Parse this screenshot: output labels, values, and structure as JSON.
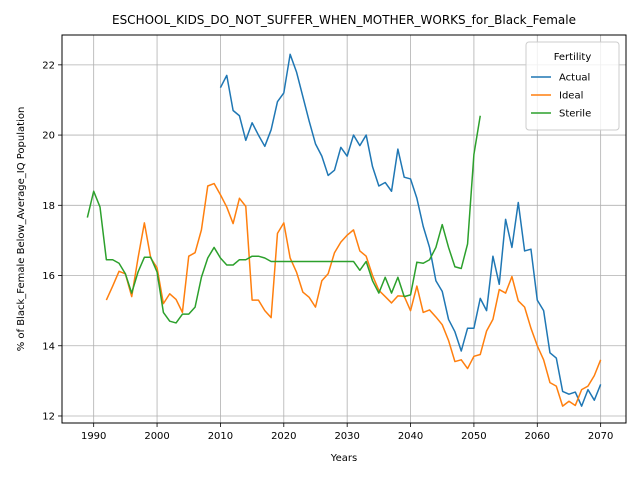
{
  "chart_data": {
    "type": "line",
    "title": "ESCHOOL_KIDS_DO_NOT_SUFFER_WHEN_MOTHER_WORKS_for_Black_Female",
    "xlabel": "Years",
    "ylabel": "% of Black_Female Below_Average_IQ Population",
    "xlim": [
      1985,
      2074
    ],
    "ylim": [
      11.8,
      22.85
    ],
    "xticks": [
      1990,
      2000,
      2010,
      2020,
      2030,
      2040,
      2050,
      2060,
      2070
    ],
    "yticks": [
      12,
      14,
      16,
      18,
      20,
      22
    ],
    "grid": true,
    "legend": {
      "title": "Fertility",
      "placement": "top-right"
    },
    "series": [
      {
        "name": "Actual",
        "color": "#1f77b4",
        "x": [
          2010,
          2011,
          2012,
          2013,
          2014,
          2015,
          2016,
          2017,
          2018,
          2019,
          2020,
          2021,
          2022,
          2023,
          2024,
          2025,
          2026,
          2027,
          2028,
          2029,
          2030,
          2031,
          2032,
          2033,
          2034,
          2035,
          2036,
          2037,
          2038,
          2039,
          2040,
          2041,
          2042,
          2043,
          2044,
          2045,
          2046,
          2047,
          2048,
          2049,
          2050,
          2051,
          2052,
          2053,
          2054,
          2055,
          2056,
          2057,
          2058,
          2059,
          2060,
          2061,
          2062,
          2063,
          2064,
          2065,
          2066,
          2067,
          2068,
          2069,
          2070
        ],
        "values": [
          21.35,
          21.7,
          20.7,
          20.55,
          19.85,
          20.35,
          20.0,
          19.68,
          20.15,
          20.95,
          21.2,
          22.3,
          21.8,
          21.1,
          20.4,
          19.75,
          19.4,
          18.85,
          19.0,
          19.65,
          19.4,
          20.0,
          19.7,
          20.0,
          19.1,
          18.55,
          18.65,
          18.4,
          19.6,
          18.8,
          18.75,
          18.2,
          17.4,
          16.8,
          15.85,
          15.55,
          14.75,
          14.4,
          13.85,
          14.5,
          14.5,
          15.35,
          15.0,
          16.55,
          15.75,
          17.6,
          16.8,
          18.08,
          16.7,
          16.75,
          15.3,
          15.0,
          13.8,
          13.65,
          12.7,
          12.62,
          12.68,
          12.28,
          12.75,
          12.45,
          12.9
        ]
      },
      {
        "name": "Ideal",
        "color": "#ff7f0e",
        "x": [
          1992,
          1993,
          1994,
          1995,
          1996,
          1997,
          1998,
          1999,
          2000,
          2001,
          2002,
          2003,
          2004,
          2005,
          2006,
          2007,
          2008,
          2009,
          2010,
          2011,
          2012,
          2013,
          2014,
          2015,
          2016,
          2017,
          2018,
          2019,
          2020,
          2021,
          2022,
          2023,
          2024,
          2025,
          2026,
          2027,
          2028,
          2029,
          2030,
          2031,
          2032,
          2033,
          2034,
          2035,
          2036,
          2037,
          2038,
          2039,
          2040,
          2041,
          2042,
          2043,
          2044,
          2045,
          2046,
          2047,
          2048,
          2049,
          2050,
          2051,
          2052,
          2053,
          2054,
          2055,
          2056,
          2057,
          2058,
          2059,
          2060,
          2061,
          2062,
          2063,
          2064,
          2065,
          2066,
          2067,
          2068,
          2069,
          2070
        ],
        "values": [
          15.3,
          15.7,
          16.12,
          16.05,
          15.4,
          16.5,
          17.5,
          16.5,
          16.22,
          15.2,
          15.48,
          15.32,
          14.95,
          16.55,
          16.65,
          17.3,
          18.55,
          18.62,
          18.3,
          17.95,
          17.48,
          18.2,
          17.97,
          15.3,
          15.3,
          15.0,
          14.8,
          17.2,
          17.5,
          16.5,
          16.1,
          15.53,
          15.38,
          15.1,
          15.85,
          16.05,
          16.65,
          16.95,
          17.15,
          17.3,
          16.7,
          16.55,
          16.0,
          15.58,
          15.4,
          15.22,
          15.42,
          15.41,
          15.0,
          15.7,
          14.95,
          15.02,
          14.82,
          14.6,
          14.15,
          13.55,
          13.6,
          13.35,
          13.7,
          13.75,
          14.42,
          14.75,
          15.6,
          15.5,
          15.97,
          15.28,
          15.1,
          14.5,
          14.0,
          13.6,
          12.95,
          12.85,
          12.28,
          12.42,
          12.3,
          12.75,
          12.85,
          13.15,
          13.6
        ]
      },
      {
        "name": "Sterile",
        "color": "#2ca02c",
        "x": [
          1989,
          1990,
          1991,
          1992,
          1993,
          1994,
          1995,
          1996,
          1997,
          1998,
          1999,
          2000,
          2001,
          2002,
          2003,
          2004,
          2005,
          2006,
          2007,
          2008,
          2009,
          2010,
          2011,
          2012,
          2013,
          2014,
          2015,
          2016,
          2017,
          2018,
          2019,
          2020,
          2021,
          2022,
          2023,
          2024,
          2025,
          2026,
          2027,
          2028,
          2029,
          2030,
          2031,
          2032,
          2033,
          2034,
          2035,
          2036,
          2037,
          2038,
          2039,
          2040,
          2041,
          2042,
          2043,
          2044,
          2045,
          2046,
          2047,
          2048,
          2049,
          2050,
          2051
        ],
        "values": [
          17.65,
          18.4,
          17.95,
          16.45,
          16.45,
          16.35,
          16.05,
          15.5,
          16.1,
          16.52,
          16.52,
          16.1,
          14.95,
          14.7,
          14.65,
          14.9,
          14.9,
          15.1,
          15.95,
          16.5,
          16.8,
          16.5,
          16.3,
          16.3,
          16.45,
          16.45,
          16.55,
          16.55,
          16.5,
          16.4,
          16.4,
          16.4,
          16.4,
          16.4,
          16.4,
          16.4,
          16.4,
          16.4,
          16.4,
          16.4,
          16.4,
          16.4,
          16.4,
          16.15,
          16.4,
          15.85,
          15.5,
          15.95,
          15.5,
          15.95,
          15.4,
          15.45,
          16.38,
          16.35,
          16.45,
          16.8,
          17.45,
          16.8,
          16.25,
          16.2,
          16.9,
          19.45,
          20.55
        ]
      }
    ]
  }
}
